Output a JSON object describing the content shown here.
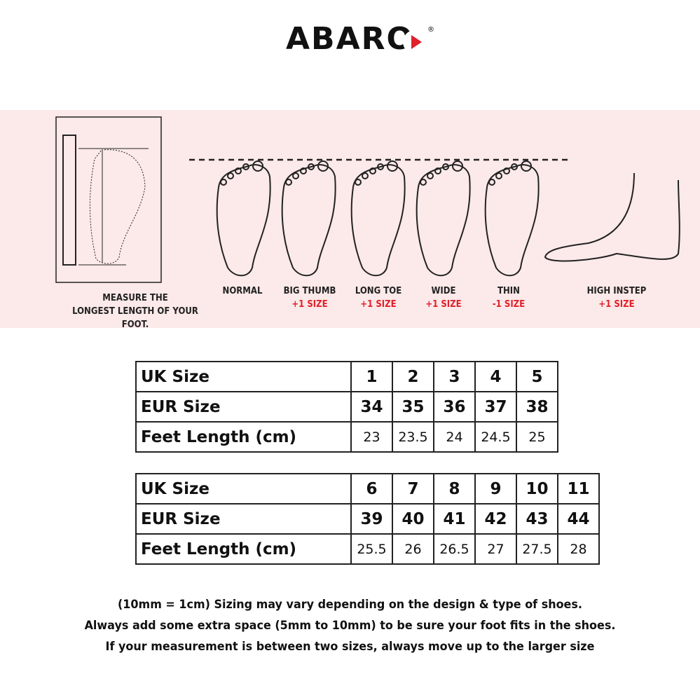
{
  "brand": {
    "name": "ABARO",
    "registered": "®",
    "accent": "#e0202a"
  },
  "measure_caption": [
    "MEASURE THE",
    "LONGEST LENGTH OF YOUR FOOT."
  ],
  "foot_types": [
    {
      "label": "NORMAL",
      "adjust": ""
    },
    {
      "label": "BIG THUMB",
      "adjust": "+1 SIZE"
    },
    {
      "label": "LONG TOE",
      "adjust": "+1 SIZE"
    },
    {
      "label": "WIDE",
      "adjust": "+1 SIZE"
    },
    {
      "label": "THIN",
      "adjust": "-1 SIZE"
    },
    {
      "label": "HIGH INSTEP",
      "adjust": "+1 SIZE"
    }
  ],
  "tables": [
    {
      "row_labels": [
        "UK    Size",
        "EUR  Size",
        "Feet Length    (cm)"
      ],
      "uk": [
        "1",
        "2",
        "3",
        "4",
        "5"
      ],
      "eur": [
        "34",
        "35",
        "36",
        "37",
        "38"
      ],
      "cm": [
        "23",
        "23.5",
        "24",
        "24.5",
        "25"
      ]
    },
    {
      "row_labels": [
        "UK    Size",
        "EUR  Size",
        "Feet Length    (cm)"
      ],
      "uk": [
        "6",
        "7",
        "8",
        "9",
        "10",
        "11"
      ],
      "eur": [
        "39",
        "40",
        "41",
        "42",
        "43",
        "44"
      ],
      "cm": [
        "25.5",
        "26",
        "26.5",
        "27",
        "27.5",
        "28"
      ]
    }
  ],
  "notes": [
    "(10mm = 1cm) Sizing may vary depending on the design & type of shoes.",
    "Always add some extra space (5mm to 10mm) to be sure your foot fits in the shoes.",
    "If your measurement is between two sizes, always move up to the larger size"
  ]
}
